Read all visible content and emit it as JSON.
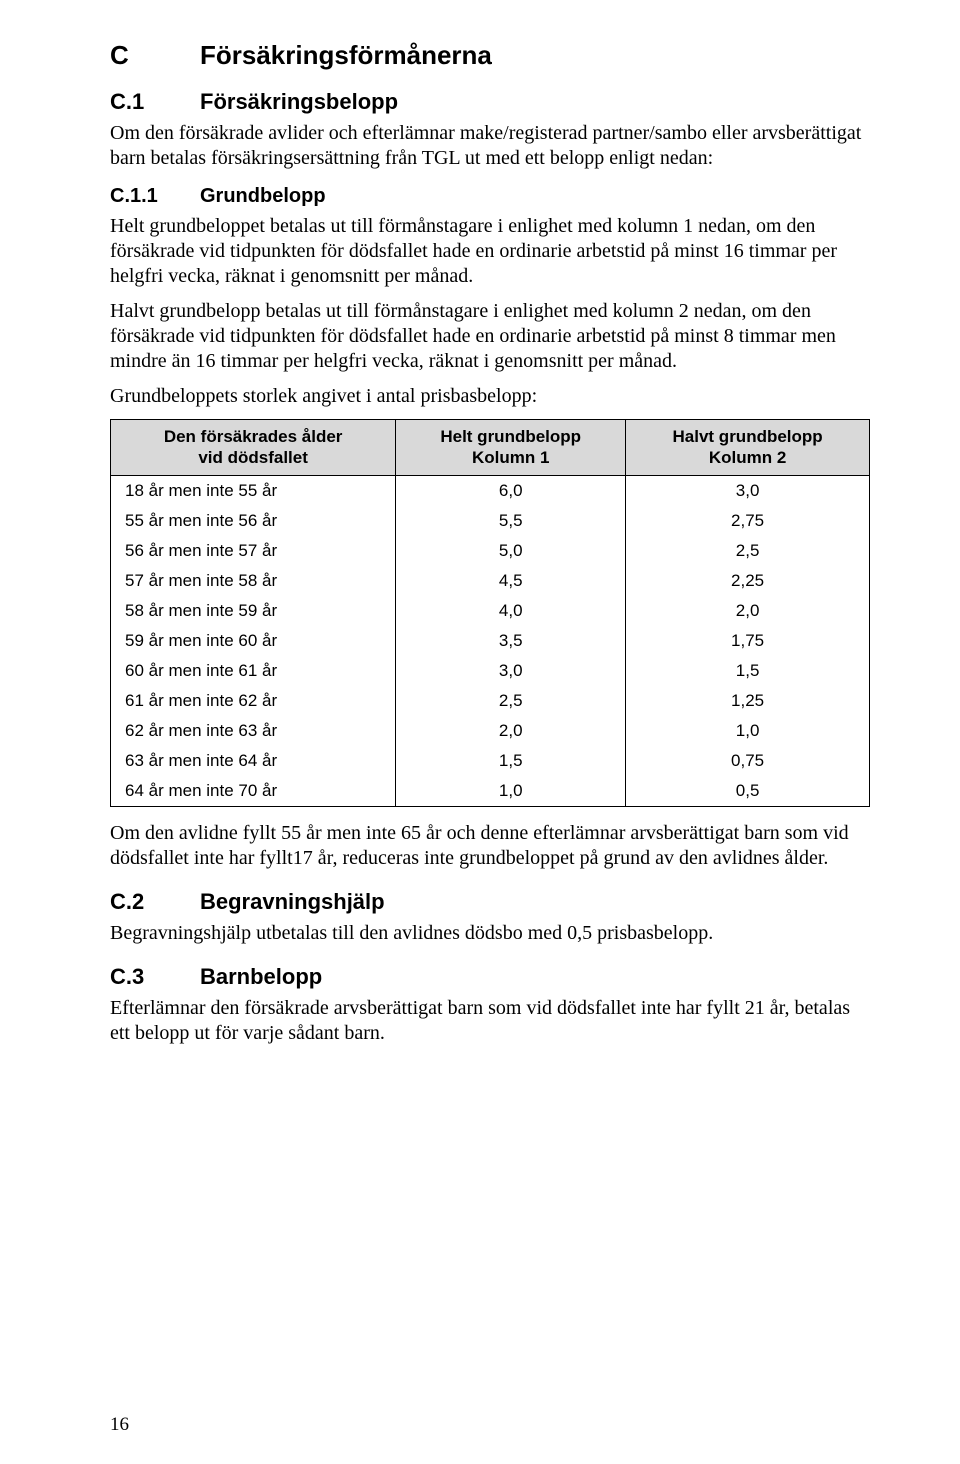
{
  "section_c": {
    "marker": "C",
    "title": "Försäkringsförmånerna"
  },
  "c1": {
    "marker": "C.1",
    "title": "Försäkringsbelopp",
    "body": "Om den försäkrade avlider och efterlämnar make/registerad partner/sambo eller arvsberättigat barn betalas försäkringsersättning från TGL ut med ett belopp enligt nedan:"
  },
  "c1_1": {
    "marker": "C.1.1",
    "title": "Grundbelopp",
    "p1": "Helt grundbeloppet betalas ut till förmånstagare i enlighet med kolumn 1 nedan, om den försäkrade vid tidpunkten för dödsfallet hade en ordinarie arbetstid på minst 16 timmar per helgfri vecka, räknat i genomsnitt per månad.",
    "p2": "Halvt grundbelopp betalas ut till förmånstagare i enlighet med kolumn 2 nedan, om den försäkrade vid tidpunkten för dödsfallet hade en ordinarie arbetstid på minst 8 timmar men mindre än 16 timmar per helgfri vecka, räknat i genomsnitt per månad.",
    "p3": "Grundbeloppets storlek angivet i antal prisbasbelopp:",
    "p4": "Om den avlidne fyllt 55 år men inte 65 år och denne efterlämnar arvsberättigat barn som vid dödsfallet inte har fyllt17 år, reduceras inte grundbeloppet på grund av den avlidnes ålder."
  },
  "table": {
    "col1_l1": "Den försäkrades ålder",
    "col1_l2": "vid dödsfallet",
    "col2_l1": "Helt grundbelopp",
    "col2_l2": "Kolumn 1",
    "col3_l1": "Halvt grundbelopp",
    "col3_l2": "Kolumn 2",
    "rows": [
      {
        "age": "18 år men inte 55 år",
        "helt": "6,0",
        "halvt": "3,0"
      },
      {
        "age": "55 år men inte 56 år",
        "helt": "5,5",
        "halvt": "2,75"
      },
      {
        "age": "56 år men inte 57 år",
        "helt": "5,0",
        "halvt": "2,5"
      },
      {
        "age": "57 år men inte 58 år",
        "helt": "4,5",
        "halvt": "2,25"
      },
      {
        "age": "58 år men inte 59 år",
        "helt": "4,0",
        "halvt": "2,0"
      },
      {
        "age": "59 år men inte 60 år",
        "helt": "3,5",
        "halvt": "1,75"
      },
      {
        "age": "60 år men inte 61 år",
        "helt": "3,0",
        "halvt": "1,5"
      },
      {
        "age": "61 år men inte 62 år",
        "helt": "2,5",
        "halvt": "1,25"
      },
      {
        "age": "62 år men inte 63 år",
        "helt": "2,0",
        "halvt": "1,0"
      },
      {
        "age": "63 år men inte 64 år",
        "helt": "1,5",
        "halvt": "0,75"
      },
      {
        "age": "64 år men inte 70 år",
        "helt": "1,0",
        "halvt": "0,5"
      }
    ],
    "header_bg": "#d9d9d9",
    "border_color": "#000000"
  },
  "c2": {
    "marker": "C.2",
    "title": "Begravningshjälp",
    "body": "Begravningshjälp utbetalas till den avlidnes dödsbo med 0,5 prisbasbelopp."
  },
  "c3": {
    "marker": "C.3",
    "title": "Barnbelopp",
    "body": "Efterlämnar den försäkrade arvsberättigat barn som vid dödsfallet inte har fyllt 21 år, betalas ett belopp ut för varje sådant barn."
  },
  "page_number": "16"
}
